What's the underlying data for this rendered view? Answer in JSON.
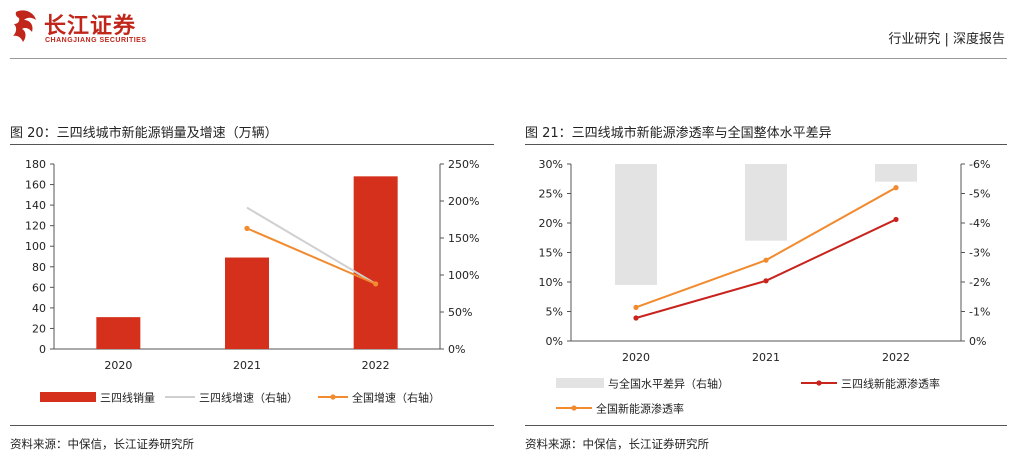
{
  "header": {
    "logo_name": "长江证券",
    "logo_sub": "CHANGJIANG SECURITIES",
    "report_type": "行业研究 | 深度报告",
    "colors": {
      "brand": "#c0261a"
    }
  },
  "charts": [
    {
      "title": "图 20：三四线城市新能源销量及增速（万辆）",
      "source": "资料来源：中保信，长江证券研究所"
    },
    {
      "title": "图 21：三四线城市新能源渗透率与全国整体水平差异",
      "source": "资料来源：中保信，长江证券研究所"
    }
  ],
  "chart_data": [
    {
      "type": "bar",
      "categories": [
        "2020",
        "2021",
        "2022"
      ],
      "y_left": {
        "ticks": [
          "0",
          "20",
          "40",
          "60",
          "80",
          "100",
          "120",
          "140",
          "160",
          "180"
        ],
        "range": [
          0,
          180
        ]
      },
      "y_right": {
        "ticks": [
          "0%",
          "50%",
          "100%",
          "150%",
          "200%",
          "250%"
        ],
        "range": [
          0,
          250
        ]
      },
      "series": [
        {
          "name": "三四线销量",
          "kind": "bar",
          "axis": "left",
          "color": "#d4301b",
          "values": [
            31,
            89,
            168
          ]
        },
        {
          "name": "三四线增速（右轴）",
          "kind": "line",
          "axis": "right",
          "color": "#d0d0d0",
          "marker": false,
          "values": [
            null,
            191,
            88
          ]
        },
        {
          "name": "全国增速（右轴）",
          "kind": "line",
          "axis": "right",
          "color": "#f28a2e",
          "marker": true,
          "values": [
            null,
            163,
            88
          ]
        }
      ],
      "legend": "bottom"
    },
    {
      "type": "bar",
      "categories": [
        "2020",
        "2021",
        "2022"
      ],
      "y_left": {
        "ticks": [
          "0%",
          "5%",
          "10%",
          "15%",
          "20%",
          "25%",
          "30%"
        ],
        "range": [
          0,
          30
        ]
      },
      "y_right": {
        "ticks": [
          "0%",
          "-1%",
          "-2%",
          "-3%",
          "-4%",
          "-5%",
          "-6%"
        ],
        "range": [
          0,
          -6
        ]
      },
      "series": [
        {
          "name": "与全国水平差异（右轴）",
          "kind": "bar",
          "axis": "right",
          "color": "#e3e3e3",
          "values": [
            -1.9,
            -3.4,
            -5.4
          ]
        },
        {
          "name": "三四线新能源渗透率",
          "kind": "line",
          "axis": "left",
          "color": "#c8231c",
          "marker": true,
          "values": [
            3.9,
            10.2,
            20.6
          ]
        },
        {
          "name": "全国新能源渗透率",
          "kind": "line",
          "axis": "left",
          "color": "#f28a2e",
          "marker": true,
          "values": [
            5.7,
            13.7,
            26.0
          ]
        }
      ],
      "legend": "bottom"
    }
  ]
}
